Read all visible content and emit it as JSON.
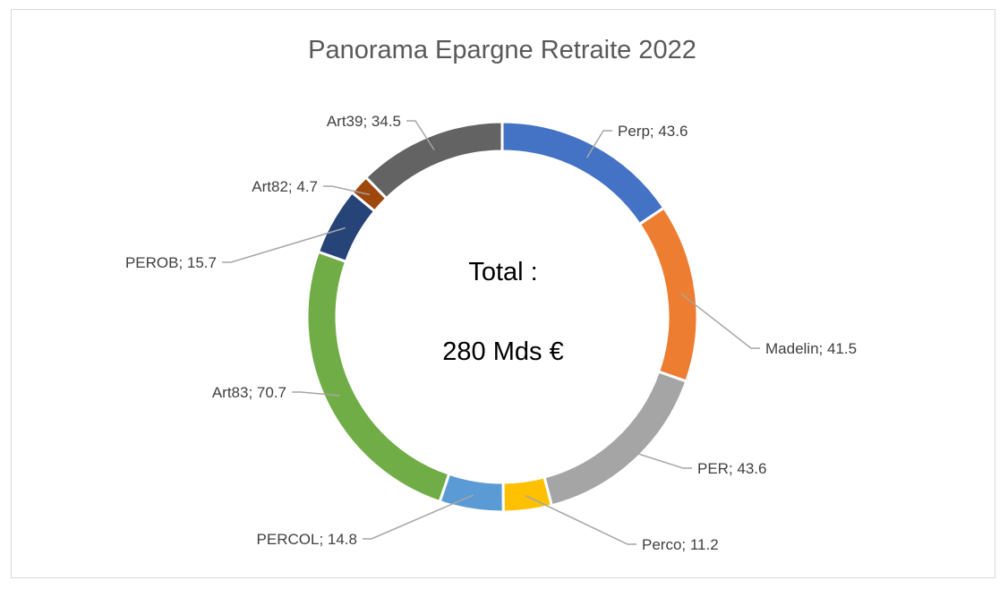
{
  "chart_data": {
    "type": "doughnut",
    "title": "Panorama Epargne Retraite 2022",
    "center_lines": [
      "Total :",
      "280 Mds €"
    ],
    "slices": [
      {
        "name": "Perp",
        "value": 43.6,
        "color": "#4472C4",
        "label": "Perp; 43.6"
      },
      {
        "name": "Madelin",
        "value": 41.5,
        "color": "#ED7D31",
        "label": "Madelin; 41.5"
      },
      {
        "name": "PER",
        "value": 43.6,
        "color": "#A5A5A5",
        "label": "PER; 43.6"
      },
      {
        "name": "Perco",
        "value": 11.2,
        "color": "#FFC000",
        "label": "Perco; 11.2"
      },
      {
        "name": "PERCOL",
        "value": 14.8,
        "color": "#5B9BD5",
        "label": "PERCOL; 14.8"
      },
      {
        "name": "Art83",
        "value": 70.7,
        "color": "#70AD47",
        "label": "Art83; 70.7"
      },
      {
        "name": "PEROB",
        "value": 15.7,
        "color": "#264478",
        "label": "PEROB; 15.7"
      },
      {
        "name": "Art82",
        "value": 4.7,
        "color": "#9E480E",
        "label": "Art82; 4.7"
      },
      {
        "name": "Art39",
        "value": 34.5,
        "color": "#636363",
        "label": "Art39; 34.5"
      }
    ]
  }
}
